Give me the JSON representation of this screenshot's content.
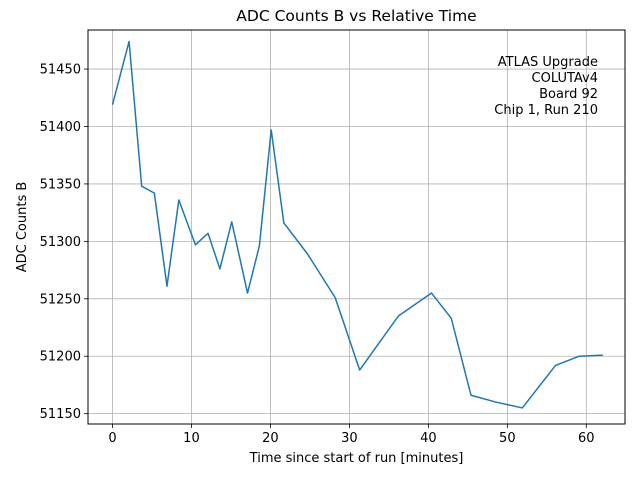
{
  "chart_data": {
    "type": "line",
    "title": "ADC Counts B vs Relative Time",
    "xlabel": "Time since start of run [minutes]",
    "ylabel": "ADC Counts B",
    "xlim": [
      -3.1,
      64.9
    ],
    "ylim": [
      51141,
      51484
    ],
    "xticks": [
      0,
      10,
      20,
      30,
      40,
      50,
      60
    ],
    "yticks": [
      51150,
      51200,
      51250,
      51300,
      51350,
      51400,
      51450
    ],
    "grid": true,
    "line_color": "#1f77b4",
    "annotation": [
      "ATLAS Upgrade",
      "COLUTAv4",
      "Board 92",
      "Chip 1, Run 210"
    ],
    "series": [
      {
        "x": [
          0,
          2.1,
          3.7,
          5.3,
          6.9,
          8.4,
          10.5,
          12.1,
          13.6,
          15.1,
          17.1,
          18.6,
          20.1,
          21.7,
          24.7,
          28.2,
          31.3,
          36.2,
          40.4,
          42.9,
          45.4,
          48.6,
          51.9,
          56.1,
          59.1,
          62.1
        ],
        "y": [
          51419,
          51474,
          51348,
          51342,
          51261,
          51336,
          51297,
          51307,
          51276,
          51317,
          51255,
          51296,
          51397,
          51316,
          51289,
          51251,
          51188,
          51235,
          51255,
          51233,
          51166,
          51160,
          51155,
          51192,
          51200,
          51201
        ]
      }
    ]
  }
}
